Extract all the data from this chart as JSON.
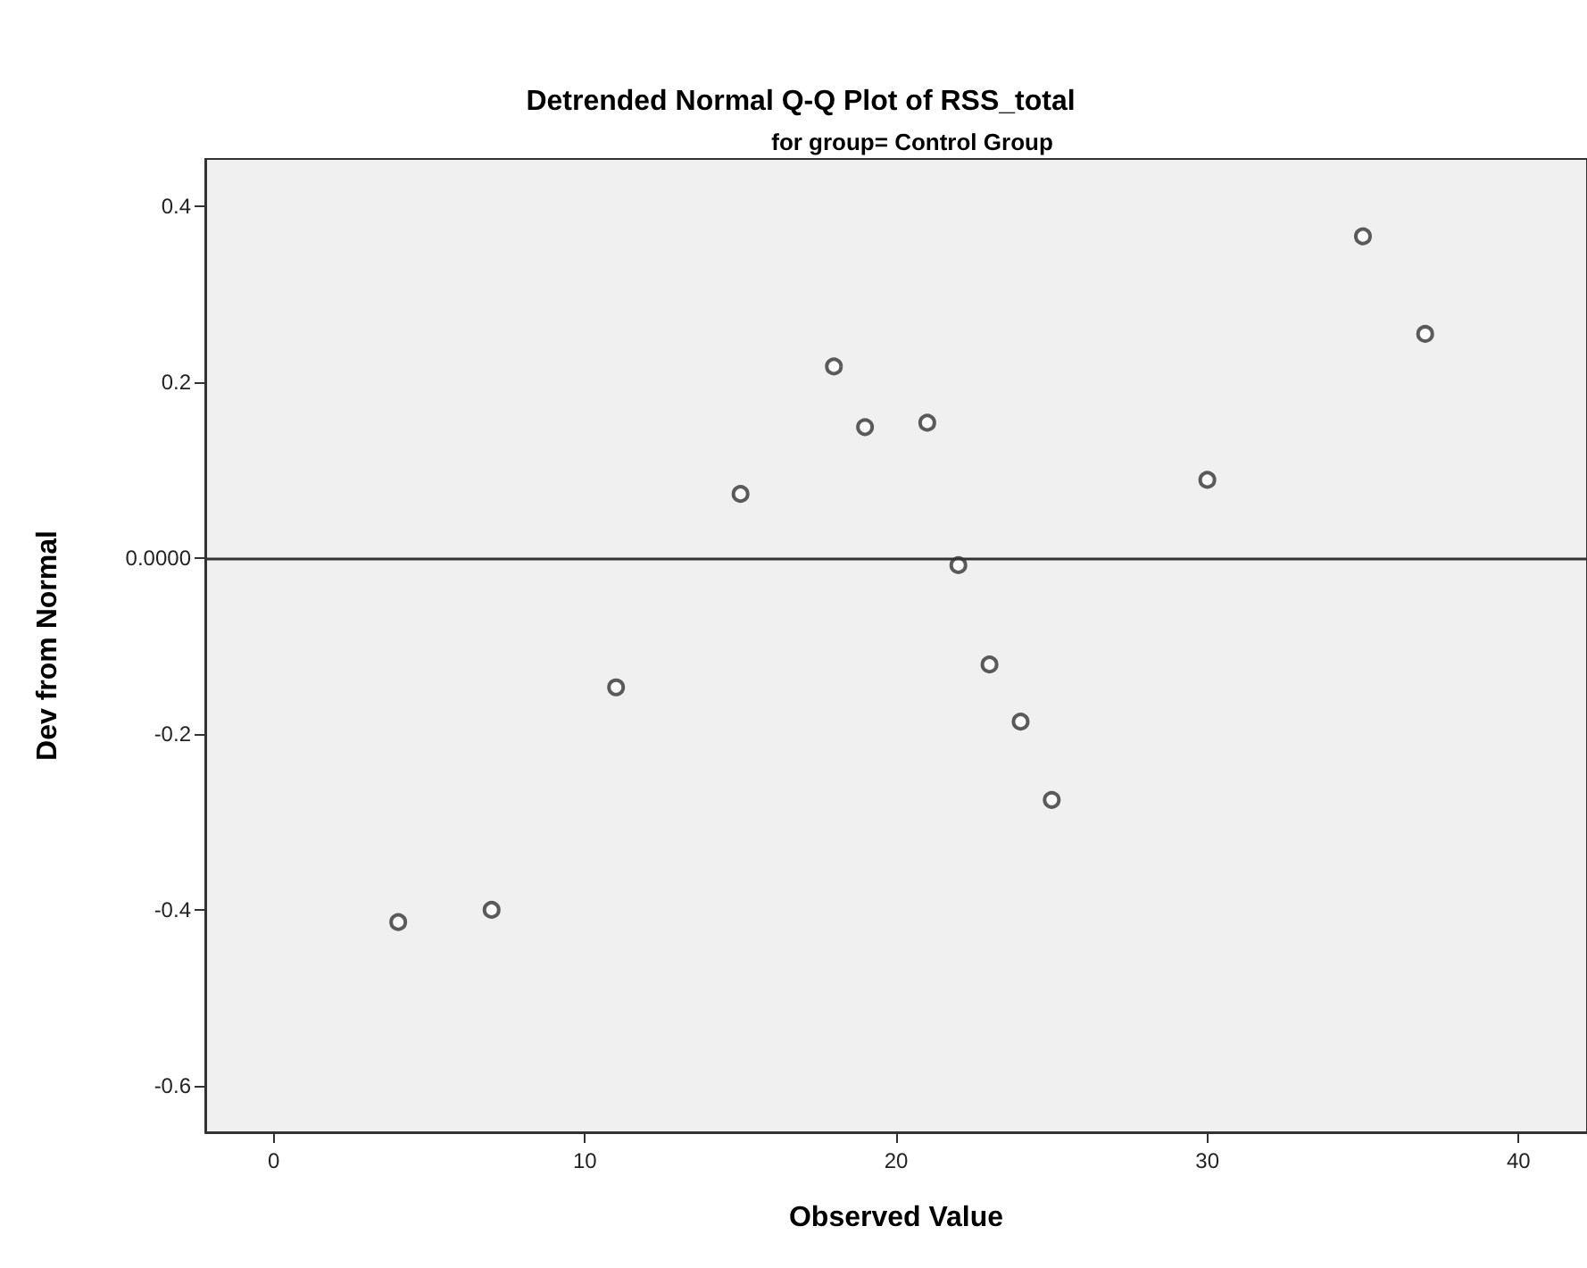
{
  "chart_data": {
    "type": "scatter",
    "title": "Detrended Normal Q-Q Plot of RSS_total",
    "subtitle": "for group= Control Group",
    "xlabel": "Observed Value",
    "ylabel": "Dev from Normal",
    "x": [
      4,
      7,
      11,
      15,
      18,
      19,
      21,
      22,
      23,
      24,
      25,
      30,
      35,
      37
    ],
    "values": [
      -0.414,
      -0.4,
      -0.147,
      0.073,
      0.218,
      0.149,
      0.154,
      -0.008,
      -0.121,
      -0.186,
      -0.275,
      0.089,
      0.366,
      0.255
    ],
    "color": "#333333",
    "marker": "circle",
    "grid": false,
    "xlim": [
      -2.2,
      42.2
    ],
    "xticks": [
      0,
      10,
      20,
      30,
      40
    ],
    "ylim": [
      -0.653,
      0.454
    ],
    "yticks": [
      -0.6,
      -0.4,
      -0.2,
      {
        "value": 0,
        "label": "0.0000"
      },
      0.2,
      0.4
    ],
    "ref_lines": [
      {
        "axis": "y",
        "value": 0,
        "color": "#333333"
      }
    ]
  }
}
